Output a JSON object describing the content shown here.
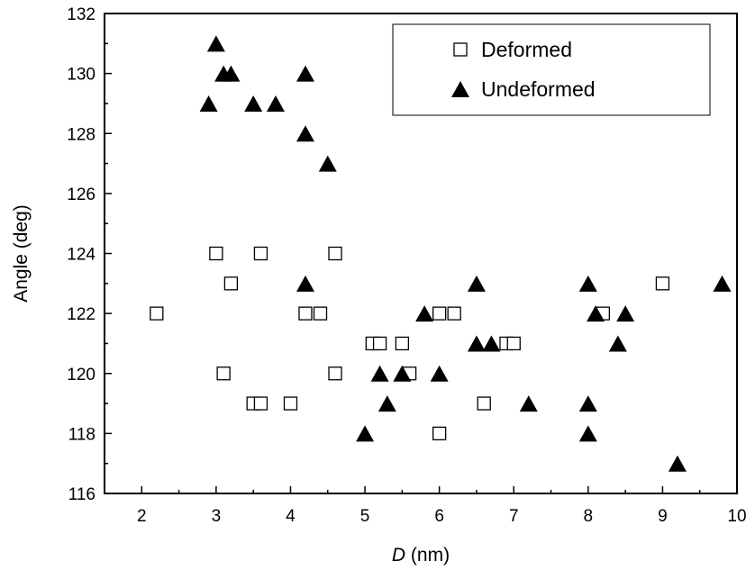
{
  "chart_data": {
    "type": "scatter",
    "xlabel_italic": "D",
    "xlabel_unit": " (nm)",
    "ylabel": "Angle (deg)",
    "xlim": [
      1.5,
      10
    ],
    "ylim": [
      116,
      132
    ],
    "x_ticks": [
      2,
      3,
      4,
      5,
      6,
      7,
      8,
      9,
      10
    ],
    "y_ticks": [
      116,
      118,
      120,
      122,
      124,
      126,
      128,
      130,
      132
    ],
    "grid": false,
    "legend_position": "top-right",
    "series": [
      {
        "name": "Deformed",
        "marker": "open-square",
        "color": "#000000",
        "points": [
          [
            2.2,
            122
          ],
          [
            3.0,
            124
          ],
          [
            3.1,
            120
          ],
          [
            3.2,
            123
          ],
          [
            3.5,
            119
          ],
          [
            3.6,
            124
          ],
          [
            3.6,
            119
          ],
          [
            4.0,
            119
          ],
          [
            4.2,
            122
          ],
          [
            4.4,
            122
          ],
          [
            4.6,
            124
          ],
          [
            4.6,
            120
          ],
          [
            5.1,
            121
          ],
          [
            5.2,
            121
          ],
          [
            5.5,
            121
          ],
          [
            5.6,
            120
          ],
          [
            6.0,
            122
          ],
          [
            6.2,
            122
          ],
          [
            6.0,
            118
          ],
          [
            6.6,
            119
          ],
          [
            6.9,
            121
          ],
          [
            7.0,
            121
          ],
          [
            8.2,
            122
          ],
          [
            9.0,
            123
          ]
        ]
      },
      {
        "name": "Undeformed",
        "marker": "filled-triangle",
        "color": "#000000",
        "points": [
          [
            3.0,
            131
          ],
          [
            2.9,
            129
          ],
          [
            3.1,
            130
          ],
          [
            3.2,
            130
          ],
          [
            3.5,
            129
          ],
          [
            3.8,
            129
          ],
          [
            4.2,
            130
          ],
          [
            4.2,
            128
          ],
          [
            4.5,
            127
          ],
          [
            4.2,
            123
          ],
          [
            5.0,
            118
          ],
          [
            5.2,
            120
          ],
          [
            5.3,
            119
          ],
          [
            5.5,
            120
          ],
          [
            5.8,
            122
          ],
          [
            6.0,
            120
          ],
          [
            6.5,
            123
          ],
          [
            6.5,
            121
          ],
          [
            6.7,
            121
          ],
          [
            7.2,
            119
          ],
          [
            8.0,
            123
          ],
          [
            8.1,
            122
          ],
          [
            8.0,
            119
          ],
          [
            8.0,
            118
          ],
          [
            8.4,
            121
          ],
          [
            8.5,
            122
          ],
          [
            9.2,
            117
          ],
          [
            9.8,
            123
          ]
        ]
      }
    ]
  }
}
